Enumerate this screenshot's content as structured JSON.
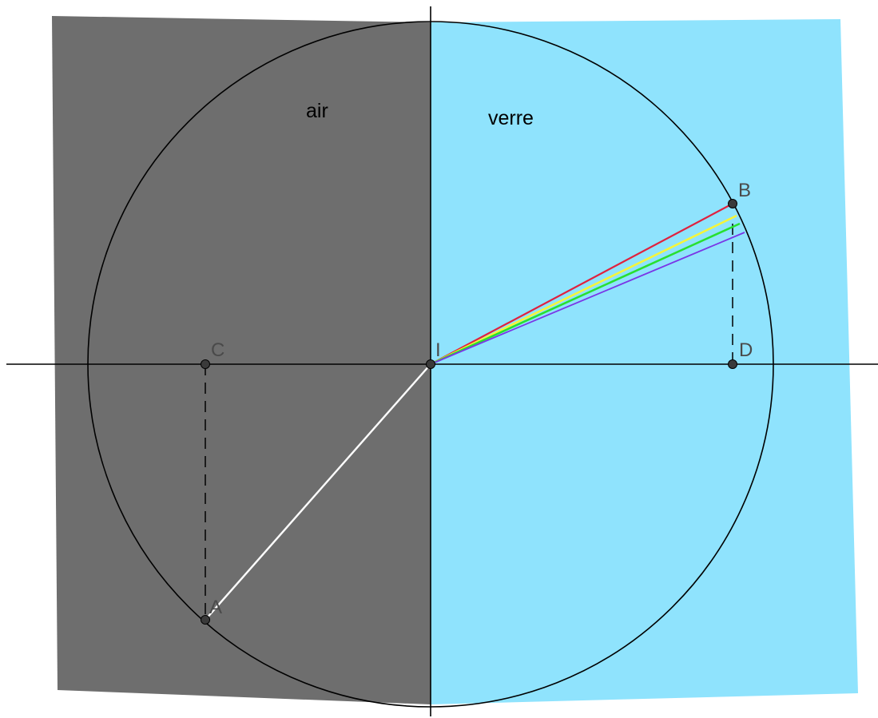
{
  "regions": {
    "air_label": "air",
    "glass_label": "verre"
  },
  "points": {
    "A": "A",
    "B": "B",
    "C": "C",
    "D": "D",
    "I": "I"
  },
  "colors": {
    "air": "#6e6e6e",
    "glass": "#8fe3fd",
    "incident_ray": "#ffffff",
    "refracted_rays": [
      "#e0213e",
      "#f5f53a",
      "#28e030",
      "#7a36e6"
    ]
  }
}
